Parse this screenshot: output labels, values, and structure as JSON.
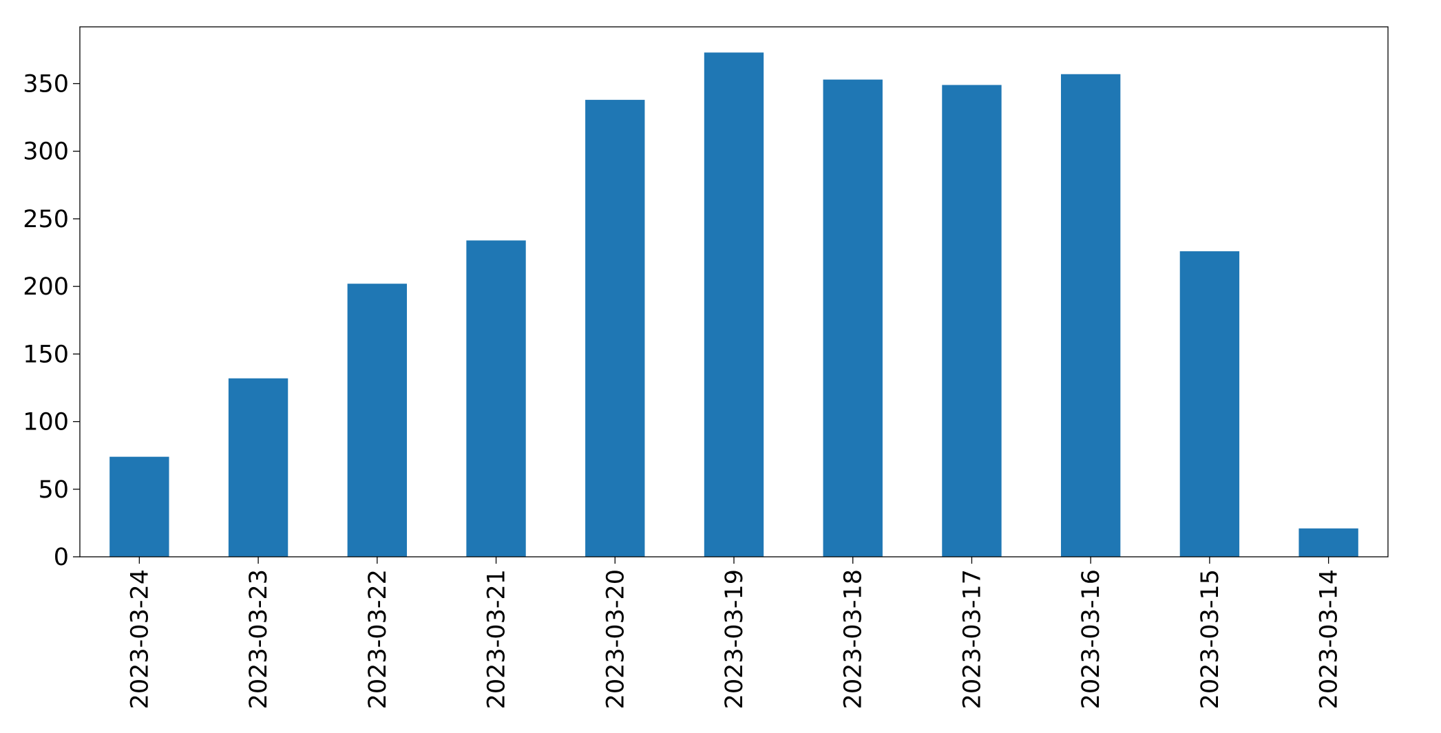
{
  "chart_data": {
    "type": "bar",
    "categories": [
      "2023-03-24",
      "2023-03-23",
      "2023-03-22",
      "2023-03-21",
      "2023-03-20",
      "2023-03-19",
      "2023-03-18",
      "2023-03-17",
      "2023-03-16",
      "2023-03-15",
      "2023-03-14"
    ],
    "values": [
      74,
      132,
      202,
      234,
      338,
      373,
      353,
      349,
      357,
      226,
      21
    ],
    "color": "#1f77b4",
    "ylim": [
      0,
      392
    ],
    "yticks": [
      0,
      50,
      100,
      150,
      200,
      250,
      300,
      350
    ],
    "grid": false
  }
}
